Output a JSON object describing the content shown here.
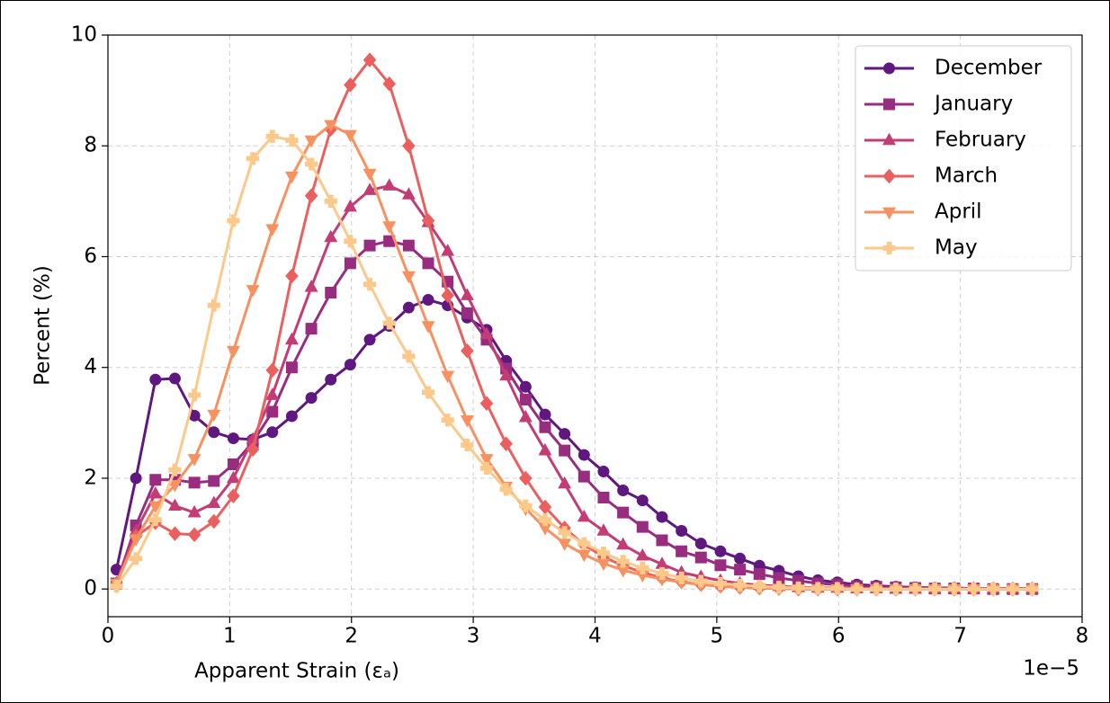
{
  "chart_data": {
    "type": "line",
    "xlabel": "Apparent Strain (εₐ)",
    "ylabel": "Percent (%)",
    "x_offset_label": "1e−5",
    "x": [
      0.07,
      0.23,
      0.39,
      0.55,
      0.71,
      0.87,
      1.03,
      1.19,
      1.35,
      1.51,
      1.67,
      1.83,
      1.99,
      2.15,
      2.31,
      2.47,
      2.63,
      2.79,
      2.95,
      3.11,
      3.27,
      3.43,
      3.59,
      3.75,
      3.91,
      4.07,
      4.23,
      4.39,
      4.55,
      4.71,
      4.87,
      5.03,
      5.19,
      5.35,
      5.51,
      5.67,
      5.83,
      5.99,
      6.15,
      6.31,
      6.47,
      6.63,
      6.79,
      6.95,
      7.11,
      7.27,
      7.43,
      7.59
    ],
    "series": [
      {
        "name": "December",
        "color": "#5f187f",
        "marker": "circle",
        "values": [
          0.35,
          2.0,
          3.78,
          3.8,
          3.13,
          2.83,
          2.72,
          2.7,
          2.83,
          3.12,
          3.45,
          3.78,
          4.05,
          4.5,
          4.75,
          5.08,
          5.22,
          5.12,
          4.9,
          4.68,
          4.12,
          3.65,
          3.15,
          2.8,
          2.42,
          2.12,
          1.78,
          1.6,
          1.3,
          1.05,
          0.82,
          0.68,
          0.55,
          0.42,
          0.33,
          0.23,
          0.16,
          0.12,
          0.08,
          0.06,
          0.04,
          0.03,
          0.02,
          0.02,
          0.01,
          0.01,
          0.01,
          0.01
        ]
      },
      {
        "name": "January",
        "color": "#982d80",
        "marker": "square",
        "values": [
          0.1,
          1.15,
          1.97,
          1.97,
          1.92,
          1.95,
          2.25,
          2.65,
          3.2,
          4.0,
          4.7,
          5.35,
          5.88,
          6.2,
          6.28,
          6.2,
          5.88,
          5.55,
          4.98,
          4.5,
          3.98,
          3.42,
          2.92,
          2.5,
          2.03,
          1.65,
          1.38,
          1.12,
          0.88,
          0.68,
          0.57,
          0.43,
          0.35,
          0.27,
          0.2,
          0.15,
          0.1,
          0.08,
          0.05,
          0.04,
          0.03,
          0.02,
          0.01,
          0.01,
          0.01,
          0,
          0,
          0
        ]
      },
      {
        "name": "February",
        "color": "#c43c75",
        "marker": "triangle-up",
        "values": [
          0.1,
          1.05,
          1.72,
          1.5,
          1.38,
          1.55,
          2.0,
          2.7,
          3.5,
          4.5,
          5.45,
          6.35,
          6.9,
          7.2,
          7.28,
          7.12,
          6.62,
          6.1,
          5.3,
          4.6,
          3.85,
          3.1,
          2.5,
          1.9,
          1.3,
          1.05,
          0.8,
          0.6,
          0.45,
          0.3,
          0.22,
          0.15,
          0.1,
          0.07,
          0.05,
          0.03,
          0.02,
          0.02,
          0.01,
          0.01,
          0,
          0,
          0,
          0,
          0,
          0,
          0,
          0
        ]
      },
      {
        "name": "March",
        "color": "#ec5f5f",
        "marker": "diamond",
        "values": [
          0.1,
          0.95,
          1.2,
          1.0,
          0.98,
          1.22,
          1.68,
          2.52,
          3.95,
          5.65,
          7.1,
          8.3,
          9.1,
          9.55,
          9.12,
          8.0,
          6.65,
          5.3,
          4.3,
          3.35,
          2.62,
          2.0,
          1.48,
          1.1,
          0.8,
          0.58,
          0.42,
          0.3,
          0.2,
          0.13,
          0.08,
          0.05,
          0.03,
          0.02,
          0.01,
          0,
          0,
          0,
          0,
          0,
          0,
          0,
          0,
          0,
          0,
          0,
          0,
          0
        ]
      },
      {
        "name": "April",
        "color": "#f8915f",
        "marker": "triangle-down",
        "values": [
          0.1,
          0.9,
          1.5,
          1.88,
          2.35,
          3.15,
          4.3,
          5.4,
          6.5,
          7.45,
          8.1,
          8.38,
          8.2,
          7.5,
          6.55,
          5.65,
          4.75,
          3.85,
          3.05,
          2.35,
          1.85,
          1.45,
          1.1,
          0.82,
          0.62,
          0.46,
          0.34,
          0.25,
          0.18,
          0.12,
          0.08,
          0.05,
          0.03,
          0.02,
          0.01,
          0,
          0,
          0,
          0,
          0,
          0,
          0,
          0,
          0,
          0,
          0,
          0,
          0
        ]
      },
      {
        "name": "May",
        "color": "#fdc98b",
        "marker": "plus",
        "values": [
          0.05,
          0.55,
          1.25,
          2.15,
          3.5,
          5.12,
          6.65,
          7.77,
          8.17,
          8.1,
          7.67,
          7.0,
          6.28,
          5.5,
          4.8,
          4.2,
          3.55,
          3.05,
          2.6,
          2.18,
          1.8,
          1.5,
          1.25,
          1.02,
          0.82,
          0.65,
          0.5,
          0.38,
          0.28,
          0.2,
          0.14,
          0.1,
          0.07,
          0.05,
          0.03,
          0.02,
          0.01,
          0.01,
          0,
          0,
          0,
          0,
          0,
          0,
          0,
          0,
          0,
          0
        ]
      }
    ],
    "xlim": [
      0,
      8
    ],
    "xticks": [
      0,
      1,
      2,
      3,
      4,
      5,
      6,
      7,
      8
    ],
    "ylim": [
      -0.5,
      10
    ],
    "yticks": [
      0,
      2,
      4,
      6,
      8,
      10
    ],
    "grid": true,
    "legend": "upper right"
  }
}
